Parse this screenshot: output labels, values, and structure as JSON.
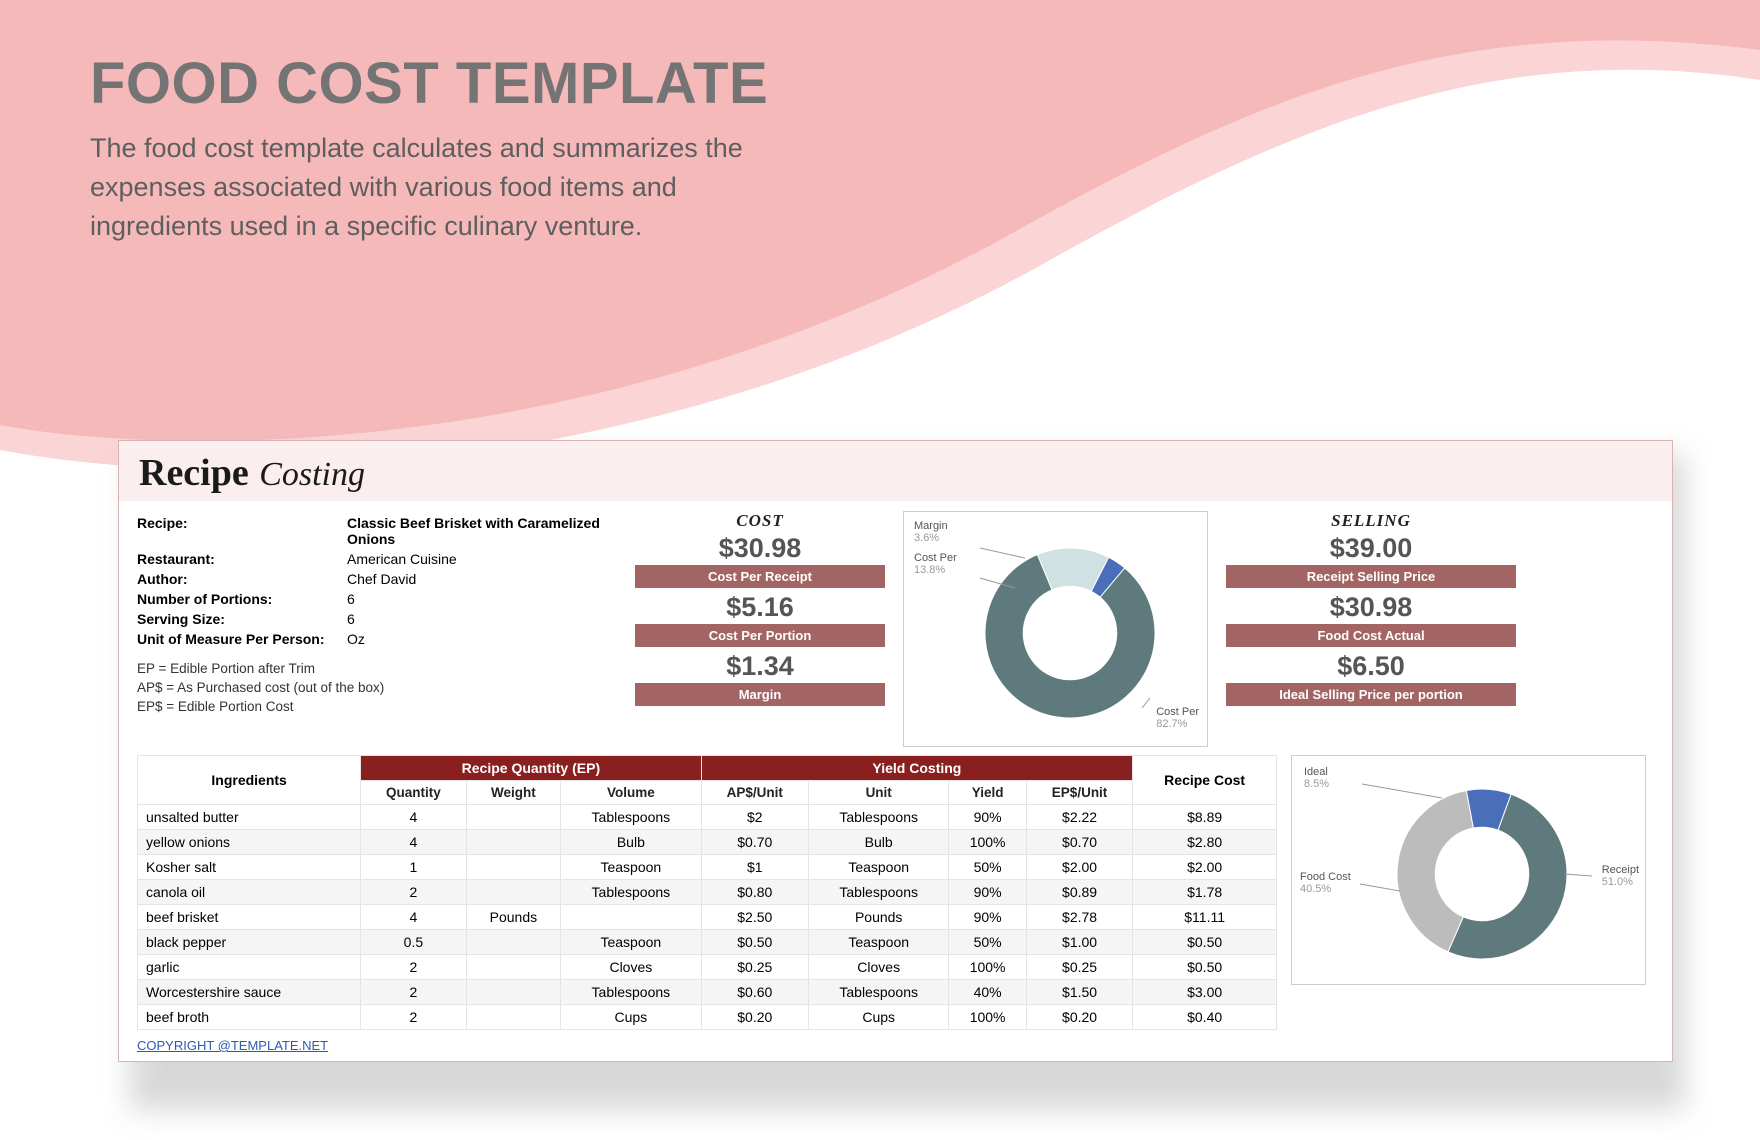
{
  "hero": {
    "title": "FOOD COST TEMPLATE",
    "subtitle": "The food cost template calculates and summarizes the expenses associated with various food items and ingredients used in a specific culinary venture."
  },
  "colors": {
    "pink_light": "#f6b9ba",
    "pink_lighter": "#fbd4d5",
    "header_bg": "#fbeeee",
    "badge": "#a36464",
    "table_group": "#8a1f1f",
    "donut_main": "#5e7a7c",
    "donut_light": "#cfe1e3",
    "donut_blue": "#4a6fba",
    "donut_grey": "#bcbcbc"
  },
  "card": {
    "title_strong": "Recipe",
    "title_script": "Costing"
  },
  "info": [
    {
      "label": "Recipe:",
      "value": "Classic Beef Brisket with Caramelized Onions",
      "bold": true
    },
    {
      "label": "Restaurant:",
      "value": "American Cuisine",
      "bold": false
    },
    {
      "label": "Author:",
      "value": "Chef David",
      "bold": false
    },
    {
      "label": "Number of Portions:",
      "value": "6",
      "bold": false
    },
    {
      "label": "Serving Size:",
      "value": "6",
      "bold": false
    },
    {
      "label": "Unit of Measure Per Person:",
      "value": "Oz",
      "bold": false
    }
  ],
  "definitions": [
    "EP = Edible Portion after Trim",
    "AP$ = As Purchased cost (out of the box)",
    "EP$ = Edible Portion Cost"
  ],
  "cost": {
    "heading": "COST",
    "v1": "$30.98",
    "b1": "Cost Per Receipt",
    "v2": "$5.16",
    "b2": "Cost Per Portion",
    "v3": "$1.34",
    "b3": "Margin"
  },
  "selling": {
    "heading": "SELLING",
    "v1": "$39.00",
    "b1": "Receipt Selling Price",
    "v2": "$30.98",
    "b2": "Food Cost Actual",
    "v3": "$6.50",
    "b3": "Ideal Selling Price per portion"
  },
  "chart1": {
    "slices": [
      {
        "label": "Cost Per",
        "pct": "82.7%",
        "value": 82.7,
        "color": "#5e7a7c"
      },
      {
        "label": "Cost Per",
        "pct": "13.8%",
        "value": 13.8,
        "color": "#cfe1e3"
      },
      {
        "label": "Margin",
        "pct": "3.6%",
        "value": 3.6,
        "color": "#4a6fba"
      }
    ],
    "inner_ratio": 0.55
  },
  "chart2": {
    "slices": [
      {
        "label": "Receipt",
        "pct": "51.0%",
        "value": 51.0,
        "color": "#5e7a7c"
      },
      {
        "label": "Food Cost",
        "pct": "40.5%",
        "value": 40.5,
        "color": "#bcbcbc"
      },
      {
        "label": "Ideal",
        "pct": "8.5%",
        "value": 8.5,
        "color": "#4a6fba"
      }
    ],
    "inner_ratio": 0.55
  },
  "table": {
    "group_headers": {
      "ing": "Ingredients",
      "qty": "Recipe Quantity (EP)",
      "yield": "Yield Costing",
      "recipe": "Recipe Cost"
    },
    "sub_headers": [
      "Quantity",
      "Weight",
      "Volume",
      "AP$/Unit",
      "Unit",
      "Yield",
      "EP$/Unit"
    ],
    "rows": [
      {
        "name": "unsalted butter",
        "qty": "4",
        "weight": "",
        "volume": "Tablespoons",
        "ap": "$2",
        "unit": "Tablespoons",
        "yield": "90%",
        "ep": "$2.22",
        "cost": "$8.89"
      },
      {
        "name": "yellow onions",
        "qty": "4",
        "weight": "",
        "volume": "Bulb",
        "ap": "$0.70",
        "unit": "Bulb",
        "yield": "100%",
        "ep": "$0.70",
        "cost": "$2.80"
      },
      {
        "name": "Kosher salt",
        "qty": "1",
        "weight": "",
        "volume": "Teaspoon",
        "ap": "$1",
        "unit": "Teaspoon",
        "yield": "50%",
        "ep": "$2.00",
        "cost": "$2.00"
      },
      {
        "name": "canola oil",
        "qty": "2",
        "weight": "",
        "volume": "Tablespoons",
        "ap": "$0.80",
        "unit": "Tablespoons",
        "yield": "90%",
        "ep": "$0.89",
        "cost": "$1.78"
      },
      {
        "name": "beef brisket",
        "qty": "4",
        "weight": "Pounds",
        "volume": "",
        "ap": "$2.50",
        "unit": "Pounds",
        "yield": "90%",
        "ep": "$2.78",
        "cost": "$11.11"
      },
      {
        "name": "black pepper",
        "qty": "0.5",
        "weight": "",
        "volume": "Teaspoon",
        "ap": "$0.50",
        "unit": "Teaspoon",
        "yield": "50%",
        "ep": "$1.00",
        "cost": "$0.50"
      },
      {
        "name": "garlic",
        "qty": "2",
        "weight": "",
        "volume": "Cloves",
        "ap": "$0.25",
        "unit": "Cloves",
        "yield": "100%",
        "ep": "$0.25",
        "cost": "$0.50"
      },
      {
        "name": "Worcestershire sauce",
        "qty": "2",
        "weight": "",
        "volume": "Tablespoons",
        "ap": "$0.60",
        "unit": "Tablespoons",
        "yield": "40%",
        "ep": "$1.50",
        "cost": "$3.00"
      },
      {
        "name": "beef broth",
        "qty": "2",
        "weight": "",
        "volume": "Cups",
        "ap": "$0.20",
        "unit": "Cups",
        "yield": "100%",
        "ep": "$0.20",
        "cost": "$0.40"
      }
    ]
  },
  "copyright": "COPYRIGHT @TEMPLATE.NET"
}
